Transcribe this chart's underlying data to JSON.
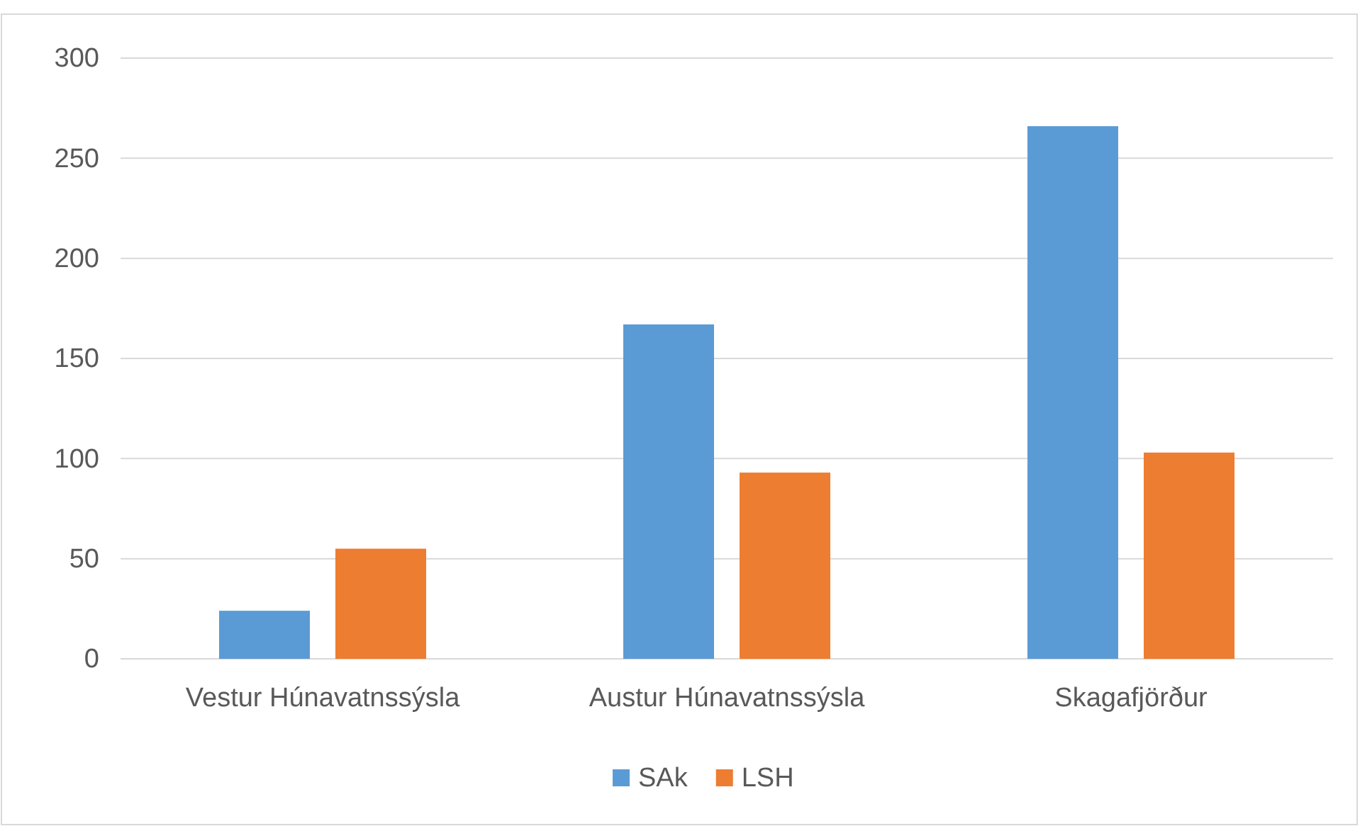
{
  "chart_data": {
    "type": "bar",
    "categories": [
      "Vestur Húnavatnssýsla",
      "Austur Húnavatnssýsla",
      "Skagafjörður"
    ],
    "series": [
      {
        "name": "SAk",
        "color": "#5b9bd5",
        "values": [
          24,
          167,
          266
        ]
      },
      {
        "name": "LSH",
        "color": "#ed7d31",
        "values": [
          55,
          93,
          103
        ]
      }
    ],
    "ylim": [
      0,
      300
    ],
    "yticks": [
      0,
      50,
      100,
      150,
      200,
      250,
      300
    ],
    "grid": "y",
    "legend": "bottom"
  }
}
